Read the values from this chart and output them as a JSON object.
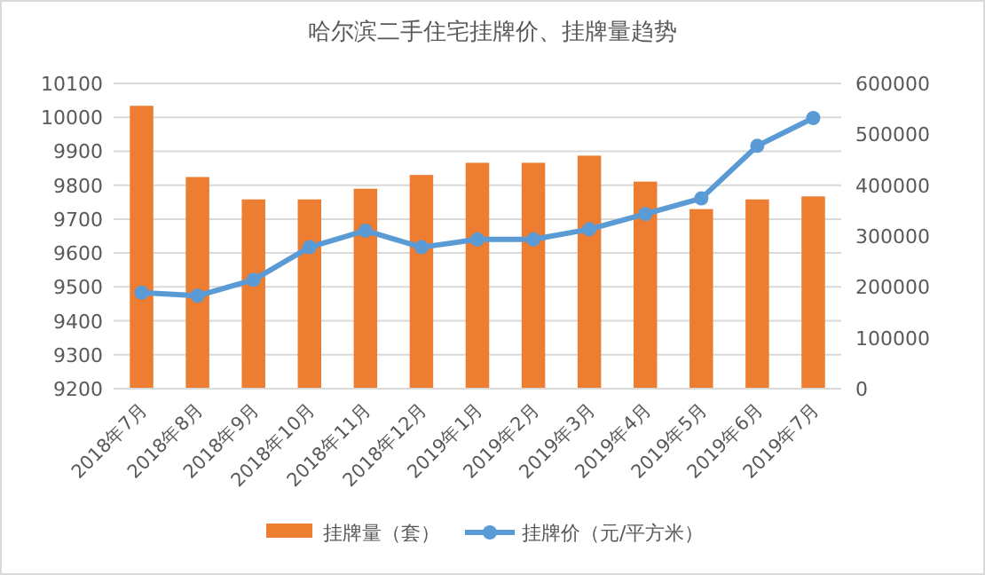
{
  "chart_data": {
    "type": "bar",
    "title": "哈尔滨二手住宅挂牌价、挂牌量趋势",
    "categories": [
      "2018年7月",
      "2018年8月",
      "2018年9月",
      "2018年10月",
      "2018年11月",
      "2018年12月",
      "2019年1月",
      "2019年2月",
      "2019年3月",
      "2019年4月",
      "2019年5月",
      "2019年6月",
      "2019年7月"
    ],
    "series": [
      {
        "name": "挂牌量（套）",
        "axis": "y2",
        "color": "#ed7d31",
        "values": [
          556000,
          416000,
          372000,
          372000,
          393000,
          420000,
          444000,
          444000,
          458000,
          407000,
          353000,
          372000,
          378000
        ]
      },
      {
        "name": "挂牌价（元/平方米）",
        "type": "line",
        "color": "#5b9bd5",
        "marker": "circle",
        "values": [
          9483,
          9474,
          9521,
          9617,
          9666,
          9617,
          9640,
          9640,
          9670,
          9715,
          9761,
          9916,
          9998
        ]
      }
    ],
    "ylim": [
      9200,
      10100
    ],
    "yticks": [
      9200,
      9300,
      9400,
      9500,
      9600,
      9700,
      9800,
      9900,
      10000,
      10100
    ],
    "y2lim": [
      0,
      600000
    ],
    "y2ticks": [
      0,
      100000,
      200000,
      300000,
      400000,
      500000,
      600000
    ],
    "grid": "y",
    "legend": "bottom"
  }
}
